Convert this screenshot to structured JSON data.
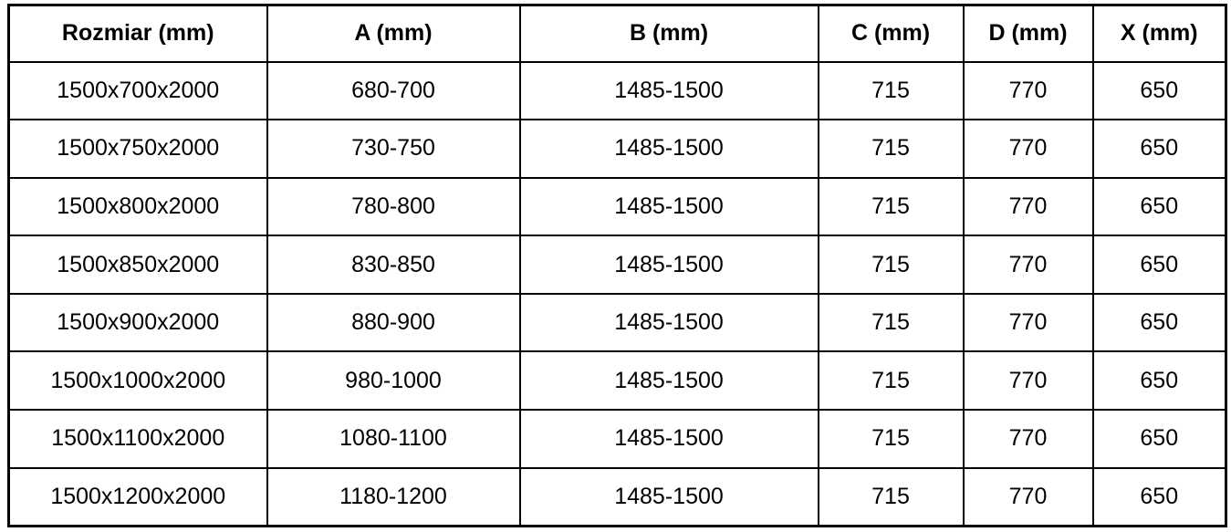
{
  "chart_data": {
    "type": "table",
    "title": "",
    "columns": [
      "Rozmiar (mm)",
      "A (mm)",
      "B (mm)",
      "C (mm)",
      "D (mm)",
      "X (mm)"
    ],
    "rows": [
      [
        "1500x700x2000",
        "680-700",
        "1485-1500",
        "715",
        "770",
        "650"
      ],
      [
        "1500x750x2000",
        "730-750",
        "1485-1500",
        "715",
        "770",
        "650"
      ],
      [
        "1500x800x2000",
        "780-800",
        "1485-1500",
        "715",
        "770",
        "650"
      ],
      [
        "1500x850x2000",
        "830-850",
        "1485-1500",
        "715",
        "770",
        "650"
      ],
      [
        "1500x900x2000",
        "880-900",
        "1485-1500",
        "715",
        "770",
        "650"
      ],
      [
        "1500x1000x2000",
        "980-1000",
        "1485-1500",
        "715",
        "770",
        "650"
      ],
      [
        "1500x1100x2000",
        "1080-1100",
        "1485-1500",
        "715",
        "770",
        "650"
      ],
      [
        "1500x1200x2000",
        "1180-1200",
        "1485-1500",
        "715",
        "770",
        "650"
      ]
    ]
  },
  "table": {
    "headers": {
      "rozmiar": "Rozmiar (mm)",
      "a": "A (mm)",
      "b": "B (mm)",
      "c": "C (mm)",
      "d": "D (mm)",
      "x": "X (mm)"
    }
  },
  "colors": {
    "border": "#000000",
    "background": "#ffffff",
    "text": "#000000"
  }
}
